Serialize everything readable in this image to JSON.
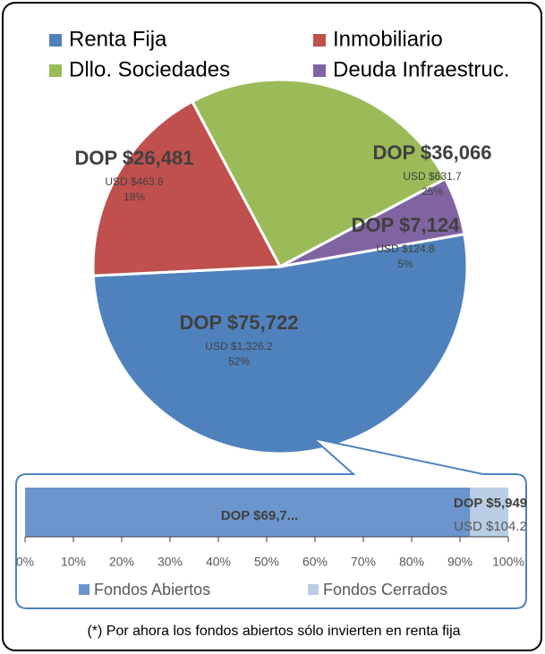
{
  "chart_data": [
    {
      "type": "pie",
      "categories": [
        "Renta Fija",
        "Inmobiliario",
        "Dllo. Sociedades",
        "Deuda Infraestruc."
      ],
      "values": [
        52,
        18,
        25,
        5
      ],
      "value_labels": [
        "52%",
        "18%",
        "25%",
        "5%"
      ],
      "dop_labels": [
        "DOP $75,722",
        "DOP $26,481",
        "DOP $36,066",
        "DOP $7,124"
      ],
      "usd_labels": [
        "USD $1,326.2",
        "USD $463.8",
        "USD $631.7",
        "USD $124.8"
      ],
      "colors": [
        "#4f81bd",
        "#c0504d",
        "#9bbb59",
        "#8064a2"
      ],
      "legend": "top"
    },
    {
      "type": "bar",
      "orientation": "horizontal",
      "stacked": true,
      "series": [
        {
          "name": "Fondos Abiertos",
          "color": "#6b95cc",
          "values": [
            92.1
          ],
          "dop_labels": [
            "DOP $69,7..."
          ]
        },
        {
          "name": "Fondos Cerrados",
          "color": "#b9cde5",
          "values": [
            7.9
          ],
          "dop_labels": [
            "DOP $5,949"
          ],
          "usd_labels": [
            "USD $104.2"
          ]
        }
      ],
      "xlim": [
        0,
        100
      ],
      "xticks": [
        {
          "value": 0,
          "label": "0%"
        },
        {
          "value": 10,
          "label": "10%"
        },
        {
          "value": 20,
          "label": "20%"
        },
        {
          "value": 30,
          "label": "30%"
        },
        {
          "value": 40,
          "label": "40%"
        },
        {
          "value": 50,
          "label": "50%"
        },
        {
          "value": 60,
          "label": "60%"
        },
        {
          "value": 70,
          "label": "70%"
        },
        {
          "value": 80,
          "label": "80%"
        },
        {
          "value": 90,
          "label": "90%"
        },
        {
          "value": 100,
          "label": "100%"
        }
      ],
      "legend": "bottom"
    }
  ],
  "footnote": "(*) Por ahora los fondos abiertos sólo invierten en renta fija"
}
